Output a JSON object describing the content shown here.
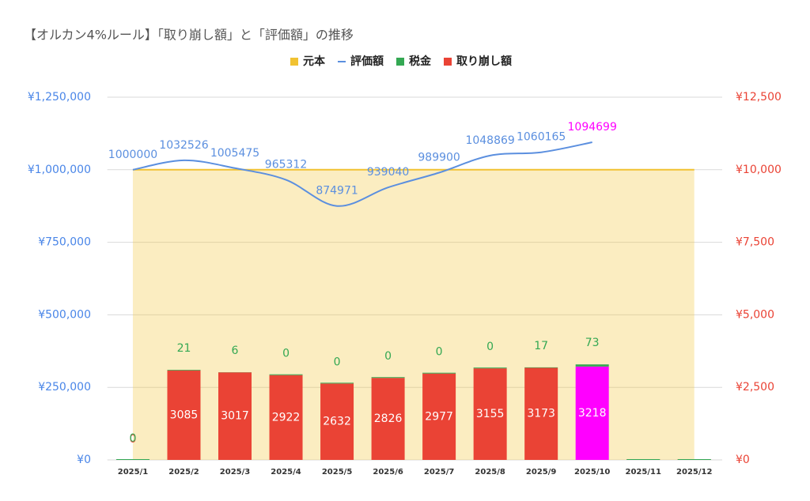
{
  "chart_data": {
    "type": "combo",
    "title": "【オルカン4%ルール】「取り崩し額」と「評価額」の推移",
    "categories": [
      "2025/1",
      "2025/2",
      "2025/3",
      "2025/4",
      "2025/5",
      "2025/6",
      "2025/7",
      "2025/8",
      "2025/9",
      "2025/10",
      "2025/11",
      "2025/12"
    ],
    "series": [
      {
        "name": "元本",
        "type": "area",
        "color": "#f1c232",
        "values": [
          1000000,
          1000000,
          1000000,
          1000000,
          1000000,
          1000000,
          1000000,
          1000000,
          1000000,
          1000000,
          1000000,
          1000000
        ]
      },
      {
        "name": "評価額",
        "type": "line",
        "color": "#5b8fdf",
        "values": [
          1000000,
          1032526,
          1005475,
          965312,
          874971,
          939040,
          989900,
          1048869,
          1060165,
          1094699,
          null,
          null
        ],
        "point_colors": [
          "#5b8fdf",
          "#5b8fdf",
          "#5b8fdf",
          "#5b8fdf",
          "#5b8fdf",
          "#5b8fdf",
          "#5b8fdf",
          "#5b8fdf",
          "#5b8fdf",
          "#ff00ff",
          null,
          null
        ]
      },
      {
        "name": "税金",
        "type": "bar",
        "axis": "y2",
        "color": "#34a853",
        "values": [
          0,
          21,
          6,
          0,
          0,
          0,
          0,
          0,
          17,
          73,
          0,
          0
        ],
        "value_labels": [
          "0",
          "21",
          "6",
          "0",
          "0",
          "0",
          "0",
          "0",
          "17",
          "73",
          null,
          null
        ]
      },
      {
        "name": "取り崩し額",
        "type": "bar",
        "axis": "y2",
        "color": "#ea4335",
        "values": [
          0,
          3085,
          3017,
          2922,
          2632,
          2826,
          2977,
          3155,
          3173,
          3218,
          0,
          0
        ],
        "value_labels": [
          "0",
          "3085",
          "3017",
          "2922",
          "2632",
          "2826",
          "2977",
          "3155",
          "3173",
          "3218",
          null,
          null
        ],
        "point_colors": [
          "#ea4335",
          "#ea4335",
          "#ea4335",
          "#ea4335",
          "#ea4335",
          "#ea4335",
          "#ea4335",
          "#ea4335",
          "#ea4335",
          "#ff00ff",
          "#ea4335",
          "#ea4335"
        ]
      }
    ],
    "ylim": [
      0,
      1250000
    ],
    "yticks": [
      {
        "value": 0,
        "label": "¥0"
      },
      {
        "value": 250000,
        "label": "¥250,000"
      },
      {
        "value": 500000,
        "label": "¥500,000"
      },
      {
        "value": 750000,
        "label": "¥750,000"
      },
      {
        "value": 1000000,
        "label": "¥1,000,000"
      },
      {
        "value": 1250000,
        "label": "¥1,250,000"
      }
    ],
    "y2lim": [
      0,
      12500
    ],
    "y2ticks": [
      {
        "value": 0,
        "label": "¥0"
      },
      {
        "value": 2500,
        "label": "¥2,500"
      },
      {
        "value": 5000,
        "label": "¥5,000"
      },
      {
        "value": 7500,
        "label": "¥7,500"
      },
      {
        "value": 10000,
        "label": "¥10,000"
      },
      {
        "value": 12500,
        "label": "¥12,500"
      }
    ],
    "grid": true,
    "legend": "top"
  }
}
